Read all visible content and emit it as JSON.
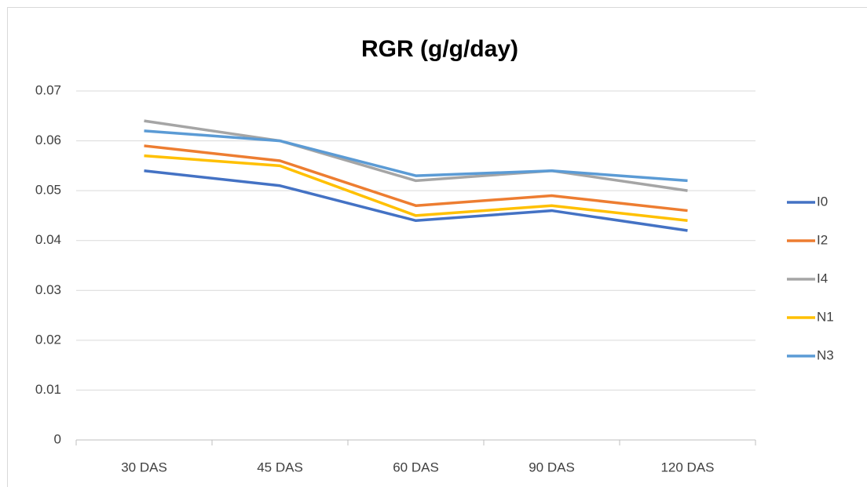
{
  "chart_data": {
    "type": "line",
    "title": "RGR (g/g/day)",
    "categories": [
      "30 DAS",
      "45 DAS",
      "60 DAS",
      "90 DAS",
      "120 DAS"
    ],
    "series": [
      {
        "name": "I0",
        "color": "#4472c4",
        "values": [
          0.054,
          0.051,
          0.044,
          0.046,
          0.042
        ]
      },
      {
        "name": "I2",
        "color": "#ed7d31",
        "values": [
          0.059,
          0.056,
          0.047,
          0.049,
          0.046
        ]
      },
      {
        "name": "I4",
        "color": "#a5a5a5",
        "values": [
          0.064,
          0.06,
          0.052,
          0.054,
          0.05
        ]
      },
      {
        "name": "N1",
        "color": "#ffc000",
        "values": [
          0.057,
          0.055,
          0.045,
          0.047,
          0.044
        ]
      },
      {
        "name": "N3",
        "color": "#5b9bd5",
        "values": [
          0.062,
          0.06,
          0.053,
          0.054,
          0.052
        ]
      }
    ],
    "ylim": [
      0,
      0.07
    ],
    "yticks": [
      0,
      0.01,
      0.02,
      0.03,
      0.04,
      0.05,
      0.06,
      0.07
    ],
    "grid": true,
    "legend": "right"
  }
}
